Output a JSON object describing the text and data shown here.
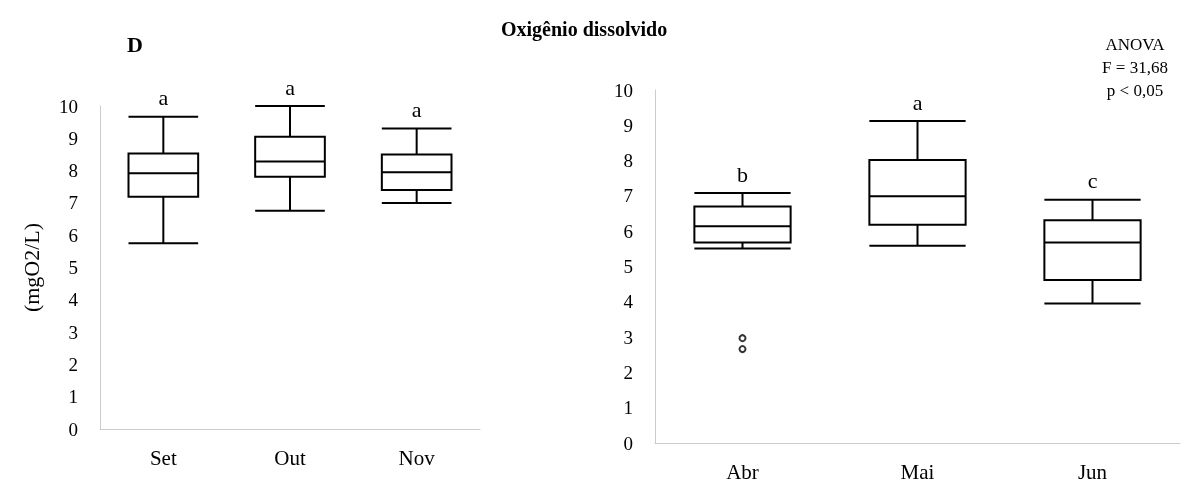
{
  "chart_data": [
    {
      "type": "box",
      "ylabel": "(mgO2/L)",
      "categories": [
        "Set",
        "Out",
        "Nov"
      ],
      "boxes": [
        {
          "low": 5.75,
          "q1": 7.19,
          "median": 7.92,
          "q3": 8.53,
          "high": 9.67
        },
        {
          "low": 6.76,
          "q1": 7.81,
          "median": 8.28,
          "q3": 9.05,
          "high": 10
        },
        {
          "low": 7.0,
          "q1": 7.4,
          "median": 7.95,
          "q3": 8.5,
          "high": 9.3
        }
      ],
      "color": "#000000",
      "ylim": [
        0,
        10
      ],
      "yticks": [
        0,
        1,
        2,
        3,
        4,
        5,
        6,
        7,
        8,
        9,
        10
      ],
      "grid": false,
      "annotations": [
        "D",
        {
          "text": "a",
          "x": "Set",
          "y": 9.67
        },
        {
          "text": "a",
          "x": "Out",
          "y": 10
        },
        {
          "text": "a",
          "x": "Nov",
          "y": 9.3
        }
      ]
    },
    {
      "type": "box",
      "title": "Oxigênio dissolvido",
      "categories": [
        "Abr",
        "Mai",
        "Jun"
      ],
      "boxes": [
        {
          "low": 5.51,
          "q1": 5.68,
          "median": 6.14,
          "q3": 6.7,
          "high": 7.08,
          "outliers": [
            2.97,
            2.66
          ]
        },
        {
          "low": 5.59,
          "q1": 6.18,
          "median": 6.99,
          "q3": 8.02,
          "high": 9.12
        },
        {
          "low": 3.95,
          "q1": 4.62,
          "median": 5.68,
          "q3": 6.31,
          "high": 6.89
        }
      ],
      "color": "#000000",
      "ylim": [
        0,
        10
      ],
      "yticks": [
        0,
        1,
        2,
        3,
        4,
        5,
        6,
        7,
        8,
        9,
        10
      ],
      "grid": false,
      "annotations": [
        "ANOVA",
        "F = 31,68",
        "p < 0,05",
        {
          "text": "b",
          "x": "Abr",
          "y": 7.08
        },
        {
          "text": "a",
          "x": "Mai",
          "y": 9.12
        },
        {
          "text": "c",
          "x": "Jun",
          "y": 6.89
        }
      ]
    }
  ]
}
